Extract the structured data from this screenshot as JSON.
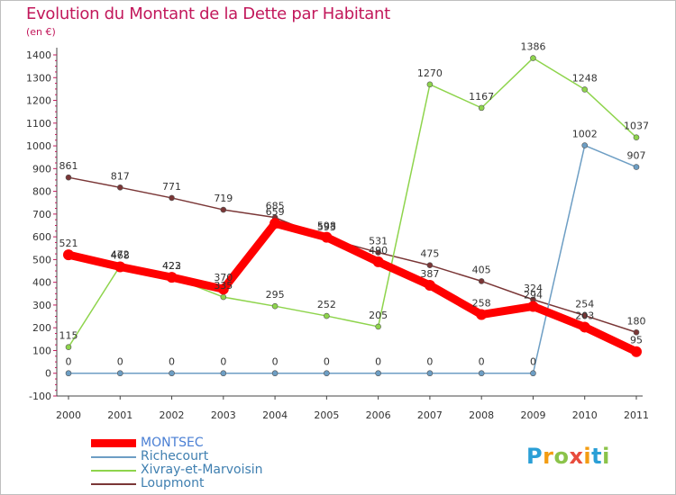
{
  "title": "Evolution du Montant de la Dette par Habitant",
  "unit": "(en €)",
  "logo": {
    "letters": [
      "P",
      "r",
      "o",
      "x",
      "i",
      "t",
      "i"
    ],
    "colors": [
      "#2a9fd6",
      "#f39c12",
      "#8bc34a",
      "#e84c3d",
      "#f39c12",
      "#2a9fd6",
      "#8bc34a"
    ]
  },
  "chart_data": {
    "type": "line",
    "title": "Evolution du Montant de la Dette par Habitant",
    "ylabel": "(en €)",
    "xlabel": "",
    "x": [
      "2000",
      "2001",
      "2002",
      "2003",
      "2004",
      "2005",
      "2006",
      "2007",
      "2008",
      "2009",
      "2010",
      "2011"
    ],
    "ylim": [
      -100,
      1400
    ],
    "yticks": [
      "-100",
      "0",
      "100",
      "200",
      "300",
      "400",
      "500",
      "600",
      "700",
      "800",
      "900",
      "1000",
      "1100",
      "1200",
      "1300",
      "1400"
    ],
    "grid": false,
    "legend_position": "bottom-left",
    "series": [
      {
        "name": "MONTSEC",
        "color": "#ff0000",
        "values": [
          521,
          468,
          422,
          370,
          659,
          598,
          490,
          387,
          258,
          294,
          203,
          95
        ],
        "labels": [
          "521",
          "468",
          "422",
          "370",
          "659",
          "598",
          "490",
          "387",
          "258",
          "294",
          "203",
          "95"
        ]
      },
      {
        "name": "Richecourt",
        "color": "#6d9ec4",
        "values": [
          0,
          0,
          0,
          0,
          0,
          0,
          0,
          0,
          0,
          0,
          1002,
          907
        ],
        "labels": [
          "0",
          "0",
          "0",
          "0",
          "0",
          "0",
          "0",
          "0",
          "0",
          "0",
          "1002",
          "907"
        ]
      },
      {
        "name": "Xivray-et-Marvoisin",
        "color": "#8ed44c",
        "values": [
          115,
          472,
          423,
          335,
          295,
          252,
          205,
          1270,
          1167,
          1386,
          1248,
          1037
        ],
        "labels": [
          "115",
          "472",
          "423",
          "335",
          "295",
          "252",
          "205",
          "1270",
          "1167",
          "1386",
          "1248",
          "1037"
        ]
      },
      {
        "name": "Loupmont",
        "color": "#7a3636",
        "values": [
          861,
          817,
          771,
          719,
          685,
          593,
          531,
          475,
          405,
          324,
          254,
          180
        ],
        "labels": [
          "861",
          "817",
          "771",
          "719",
          "685",
          "593",
          "531",
          "475",
          "405",
          "324",
          "254",
          "180"
        ]
      }
    ]
  }
}
